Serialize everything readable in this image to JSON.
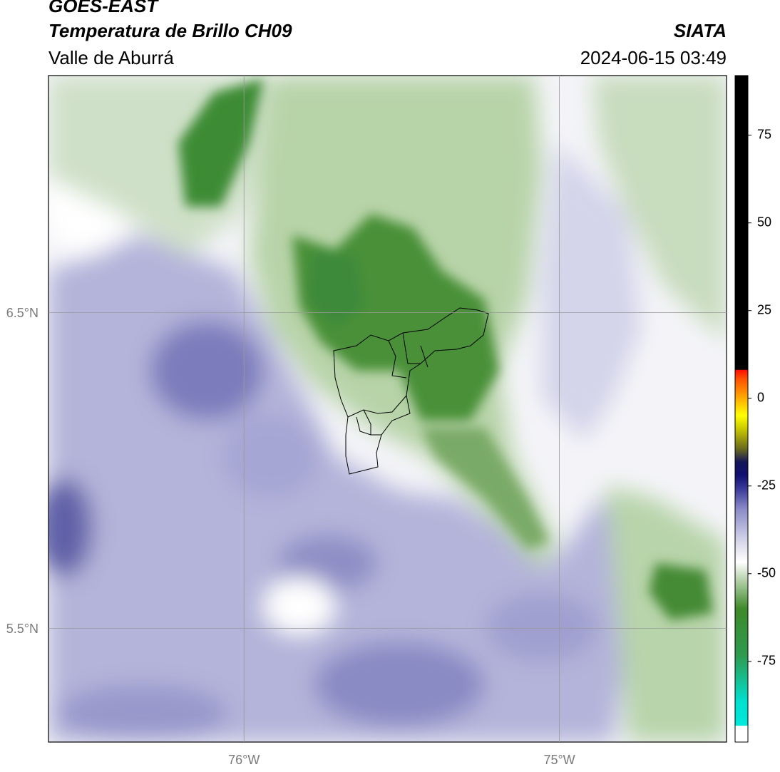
{
  "header": {
    "title": "GOES-EAST",
    "subtitle": "Temperatura de Brillo CH09",
    "region": "Valle de Aburrá",
    "source": "SIATA",
    "datetime": "2024-06-15 03:49"
  },
  "map": {
    "xlim": [
      -76.62,
      -74.47
    ],
    "ylim": [
      5.14,
      7.25
    ],
    "xticks": [
      {
        "value": -76,
        "label": "76°W"
      },
      {
        "value": -75,
        "label": "75°W"
      }
    ],
    "yticks": [
      {
        "value": 6.5,
        "label": "6.5°N"
      },
      {
        "value": 5.5,
        "label": "5.5°N"
      }
    ],
    "grid": true
  },
  "colorbar": {
    "lim": [
      -98,
      92
    ],
    "ticks": [
      -75,
      -50,
      -25,
      0,
      25,
      50,
      75
    ]
  }
}
